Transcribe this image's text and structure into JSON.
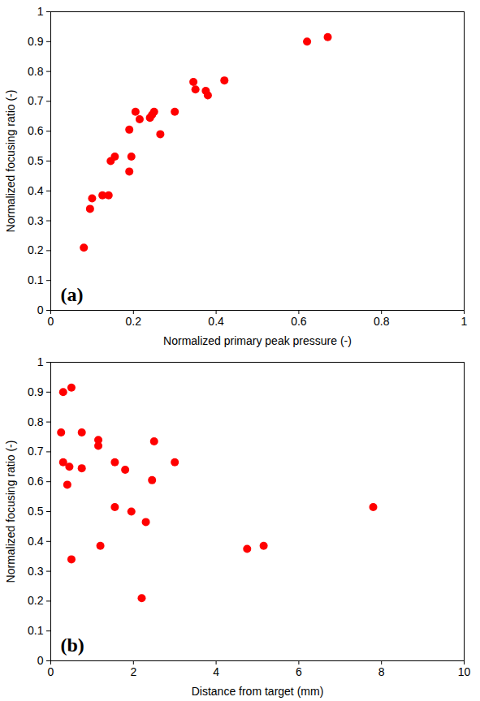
{
  "chart_data": [
    {
      "type": "scatter",
      "x_label": "Normalized primary peak pressure (-)",
      "y_label": "Normalized focusing ratio (-)",
      "annotations": [
        "(a)"
      ],
      "x": [
        0.08,
        0.095,
        0.1,
        0.125,
        0.14,
        0.145,
        0.155,
        0.19,
        0.19,
        0.195,
        0.205,
        0.215,
        0.24,
        0.245,
        0.25,
        0.265,
        0.3,
        0.345,
        0.35,
        0.375,
        0.38,
        0.42,
        0.62,
        0.67
      ],
      "values": [
        0.21,
        0.34,
        0.375,
        0.385,
        0.385,
        0.5,
        0.515,
        0.605,
        0.465,
        0.515,
        0.665,
        0.64,
        0.645,
        0.655,
        0.665,
        0.59,
        0.665,
        0.765,
        0.74,
        0.735,
        0.72,
        0.77,
        0.9,
        0.915
      ],
      "color": "#ff0000",
      "marker": "circle",
      "xlim": [
        0,
        1
      ],
      "xticks": [
        0,
        0.2,
        0.4,
        0.6,
        0.8,
        1
      ],
      "ylim": [
        0,
        1
      ],
      "yticks": [
        0,
        0.1,
        0.2,
        0.3,
        0.4,
        0.5,
        0.6,
        0.7,
        0.8,
        0.9,
        1
      ],
      "grid": false
    },
    {
      "type": "scatter",
      "x_label": "Distance from target (mm)",
      "y_label": "Normalized focusing ratio (-)",
      "annotations": [
        "(b)"
      ],
      "x": [
        0.3,
        0.5,
        0.25,
        0.3,
        0.45,
        0.4,
        0.5,
        0.75,
        0.75,
        1.15,
        1.15,
        1.2,
        1.55,
        1.55,
        1.8,
        1.95,
        2.2,
        2.3,
        2.45,
        2.5,
        3.0,
        4.75,
        5.15,
        7.8
      ],
      "values": [
        0.9,
        0.915,
        0.765,
        0.665,
        0.65,
        0.59,
        0.34,
        0.765,
        0.645,
        0.74,
        0.72,
        0.385,
        0.665,
        0.515,
        0.64,
        0.5,
        0.21,
        0.465,
        0.605,
        0.735,
        0.665,
        0.375,
        0.385,
        0.515
      ],
      "color": "#ff0000",
      "marker": "circle",
      "xlim": [
        0,
        10
      ],
      "xticks": [
        0,
        2,
        4,
        6,
        8,
        10
      ],
      "ylim": [
        0,
        1
      ],
      "yticks": [
        0,
        0.1,
        0.2,
        0.3,
        0.4,
        0.5,
        0.6,
        0.7,
        0.8,
        0.9,
        1
      ],
      "grid": false
    }
  ]
}
